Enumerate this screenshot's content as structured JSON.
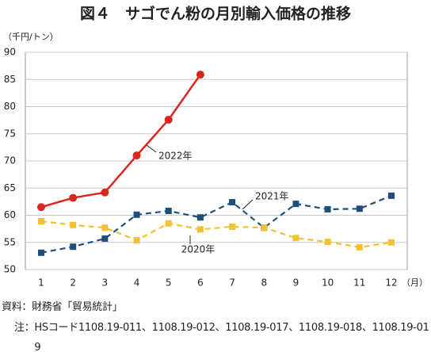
{
  "chart_data": {
    "type": "line",
    "title": "図４　サゴでん粉の月別輸入価格の推移",
    "y_unit": "（千円/トン）",
    "x_unit": "（月）",
    "categories": [
      "1",
      "2",
      "3",
      "4",
      "5",
      "6",
      "7",
      "8",
      "9",
      "10",
      "11",
      "12"
    ],
    "series": [
      {
        "name": "2022年",
        "color": "#d9261c",
        "marker": "circle",
        "dashed": false,
        "values": [
          61.5,
          63.2,
          64.2,
          71.0,
          77.6,
          85.9,
          null,
          null,
          null,
          null,
          null,
          null
        ]
      },
      {
        "name": "2021年",
        "color": "#1f4e7a",
        "marker": "square",
        "dashed": true,
        "values": [
          53.1,
          54.2,
          55.7,
          60.1,
          60.8,
          59.6,
          62.4,
          57.7,
          62.1,
          61.1,
          61.2,
          63.6
        ]
      },
      {
        "name": "2020年",
        "color": "#f2c230",
        "marker": "square",
        "dashed": true,
        "values": [
          58.9,
          58.2,
          57.7,
          55.4,
          58.5,
          57.4,
          57.9,
          57.7,
          55.8,
          55.1,
          54.1,
          55.0
        ]
      }
    ],
    "ylim": [
      50,
      90
    ],
    "yticks": [
      50,
      55,
      60,
      65,
      70,
      75,
      80,
      85,
      90
    ],
    "grid": true,
    "source": "資料：財務省「貿易統計」",
    "note_label": "注：",
    "note": "HSコード1108.19-011、1108.19-012、1108.19-017、1108.19-018、1108.19-019"
  }
}
